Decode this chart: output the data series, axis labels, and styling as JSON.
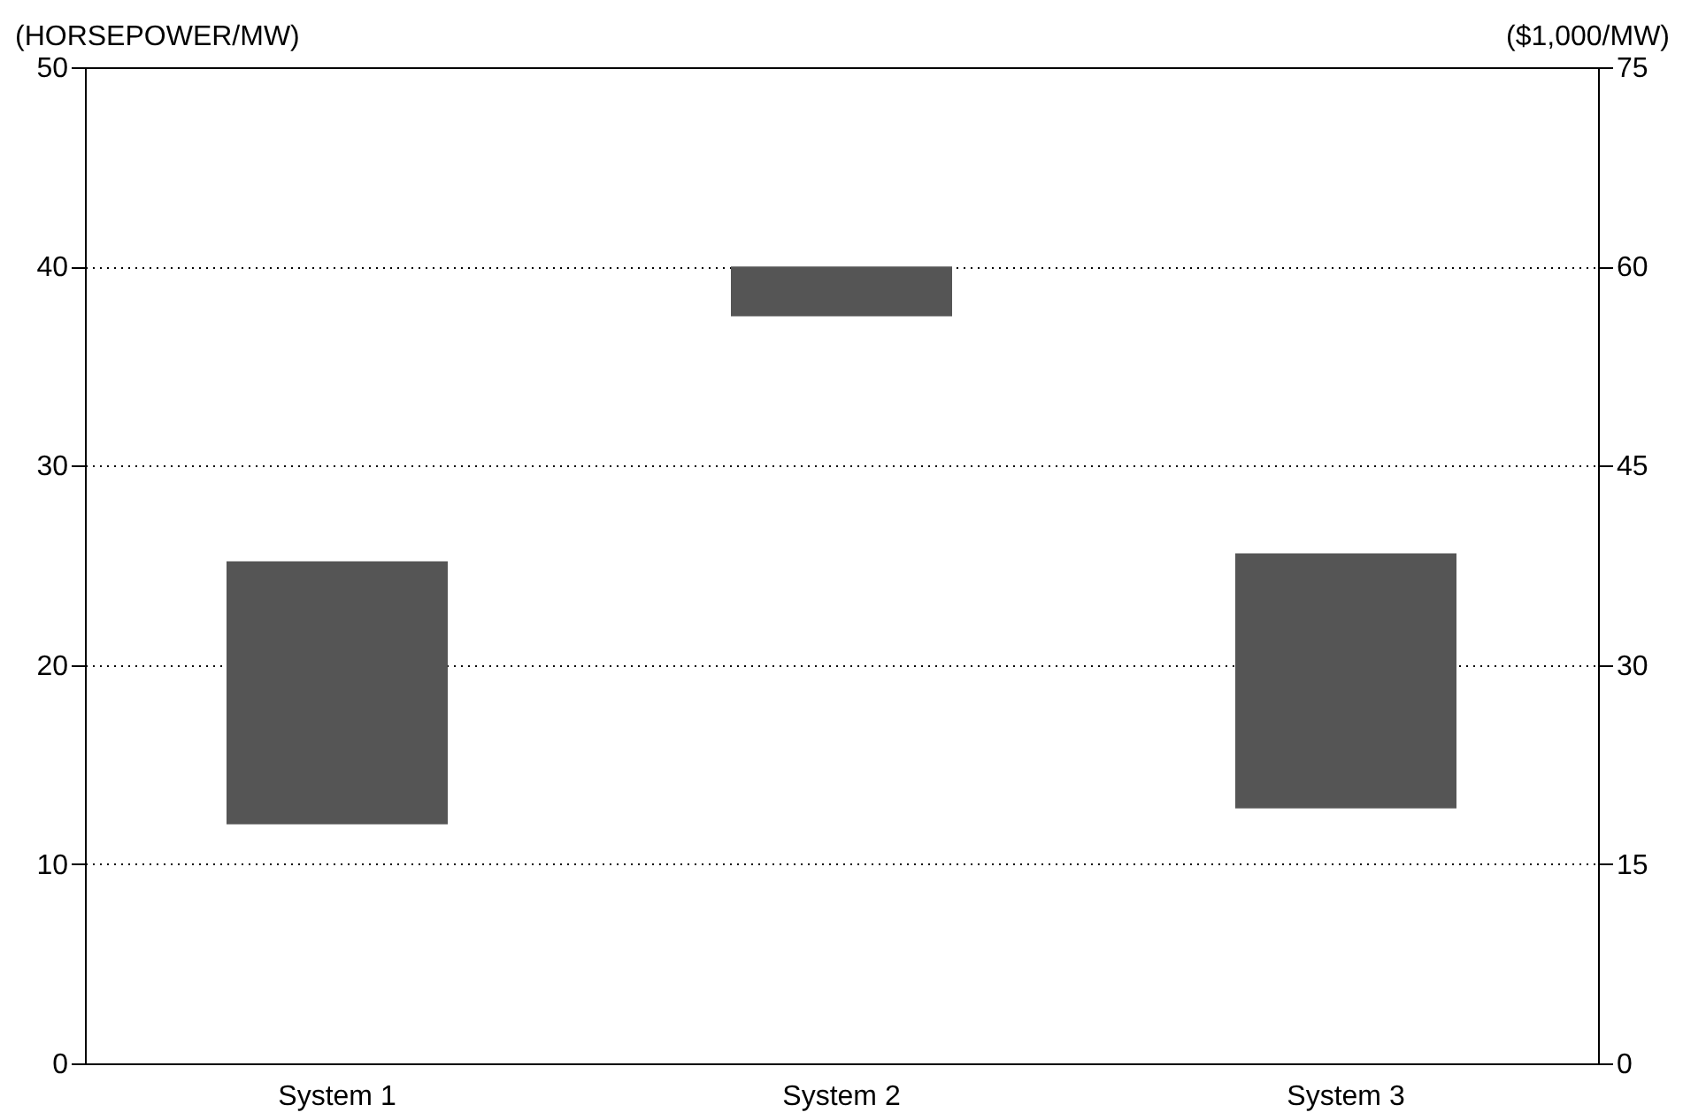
{
  "chart_data": {
    "type": "bar",
    "ylabel": "(HORSEPOWER/MW)",
    "y2label": "($1,000/MW)",
    "categories": [
      "System 1",
      "System 2",
      "System 3"
    ],
    "series": [
      {
        "color": "#555555",
        "values": [
          13.2,
          2.5,
          12.8
        ],
        "base": [
          12,
          37.5,
          12.8
        ]
      }
    ],
    "ylim": [
      0,
      50
    ],
    "yticks": [
      0,
      10,
      20,
      30,
      40,
      50
    ],
    "y2lim": [
      0,
      75
    ],
    "y2ticks": [
      0,
      15,
      30,
      45,
      60,
      75
    ],
    "grid": "y",
    "legend": false,
    "line_style": "dotted"
  }
}
